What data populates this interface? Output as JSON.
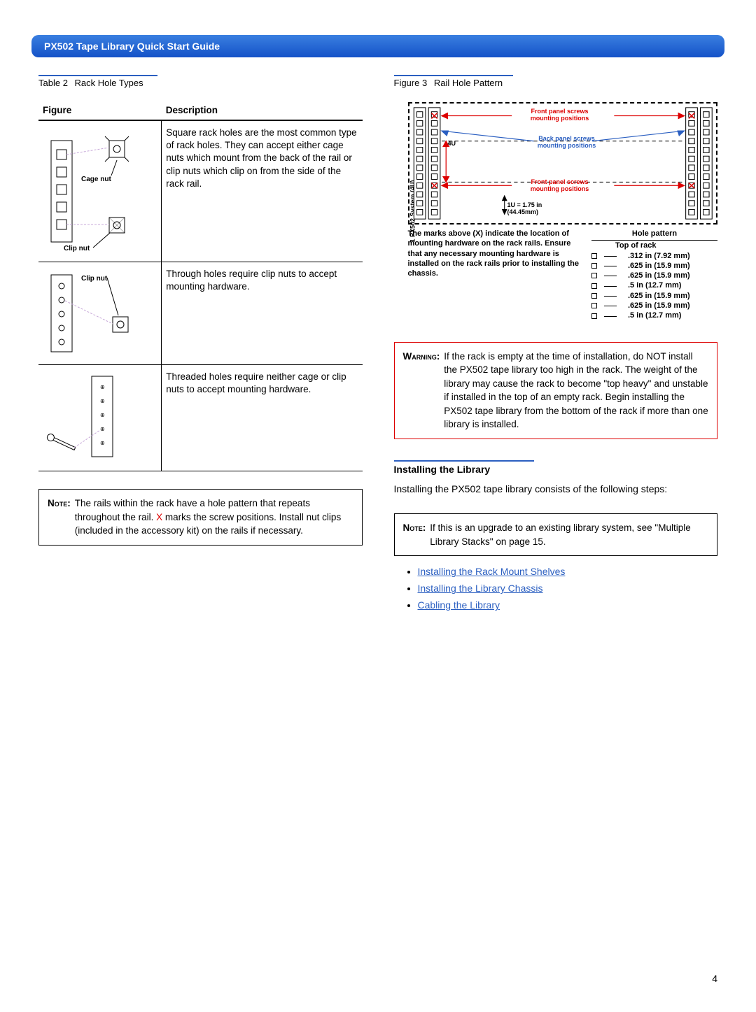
{
  "header": {
    "title": "PX502 Tape Library Quick Start Guide"
  },
  "left": {
    "table_caption_label": "Table 2",
    "table_caption_text": "Rack Hole Types",
    "th_figure": "Figure",
    "th_desc": "Description",
    "row1_labels": {
      "cage": "Cage nut",
      "clip": "Clip nut"
    },
    "row1_desc": "Square rack holes are the most common type of rack holes. They can accept either cage nuts which mount from the back of the rail or clip nuts which clip on from the side of the rack rail.",
    "row2_label": "Clip nut",
    "row2_desc": "Through holes require clip nuts to accept mounting hardware.",
    "row3_desc": "Threaded holes require neither cage or clip nuts to accept mounting hardware.",
    "note_label": "Note:",
    "note_pre": "The rails within the rack have a hole pattern that repeats throughout the rail. ",
    "note_x": "X",
    "note_post": " marks the screw positions. Install nut clips (included in the accessory kit) on the rails if necessary."
  },
  "right": {
    "fig_caption_label": "Figure 3",
    "fig_caption_text": "Rail Hole Pattern",
    "diag": {
      "vlabel": "1 PX502 System (4U)",
      "front_top": "Front panel screws\nmounting positions",
      "back": "Back panel screws\nmounting positions",
      "front_bot": "Front panel screws\nmounting positions",
      "fourU": "4U",
      "unit_line1": "1U = 1.75 in",
      "unit_line2": "(44.45mm)"
    },
    "marks_text": "The marks above (X) indicate the location of mounting hardware on the rack rails. Ensure that any necessary mounting hardware is installed on the rack rails prior to installing the chassis.",
    "hole_title": "Hole pattern",
    "hole_top": "Top of rack",
    "hole_list": [
      ".312 in (7.92 mm)",
      ".625 in (15.9 mm)",
      ".625 in (15.9 mm)",
      ".5 in (12.7 mm)",
      ".625 in (15.9 mm)",
      ".625 in (15.9 mm)",
      ".5 in (12.7 mm)"
    ],
    "warn_label": "Warning:",
    "warn_text": "If the rack is empty at the time of installation, do NOT install the PX502 tape library too high in the rack. The weight of the library may cause the rack to become \"top heavy\" and unstable if installed in the top of an empty rack. Begin installing the PX502 tape library from the bottom of the rack if more than one library is installed.",
    "section_h": "Installing the Library",
    "section_p": "Installing the PX502 tape library consists of the following steps:",
    "note2_label": "Note:",
    "note2_text": "If this is an upgrade to an existing library system, see \"Multiple Library Stacks\" on page 15.",
    "links": [
      "Installing the Rack Mount Shelves",
      "Installing the Library Chassis",
      "Cabling the Library"
    ]
  },
  "page_number": "4",
  "colors": {
    "accent_blue": "#2b5fc1",
    "warn_red": "#d00000"
  }
}
